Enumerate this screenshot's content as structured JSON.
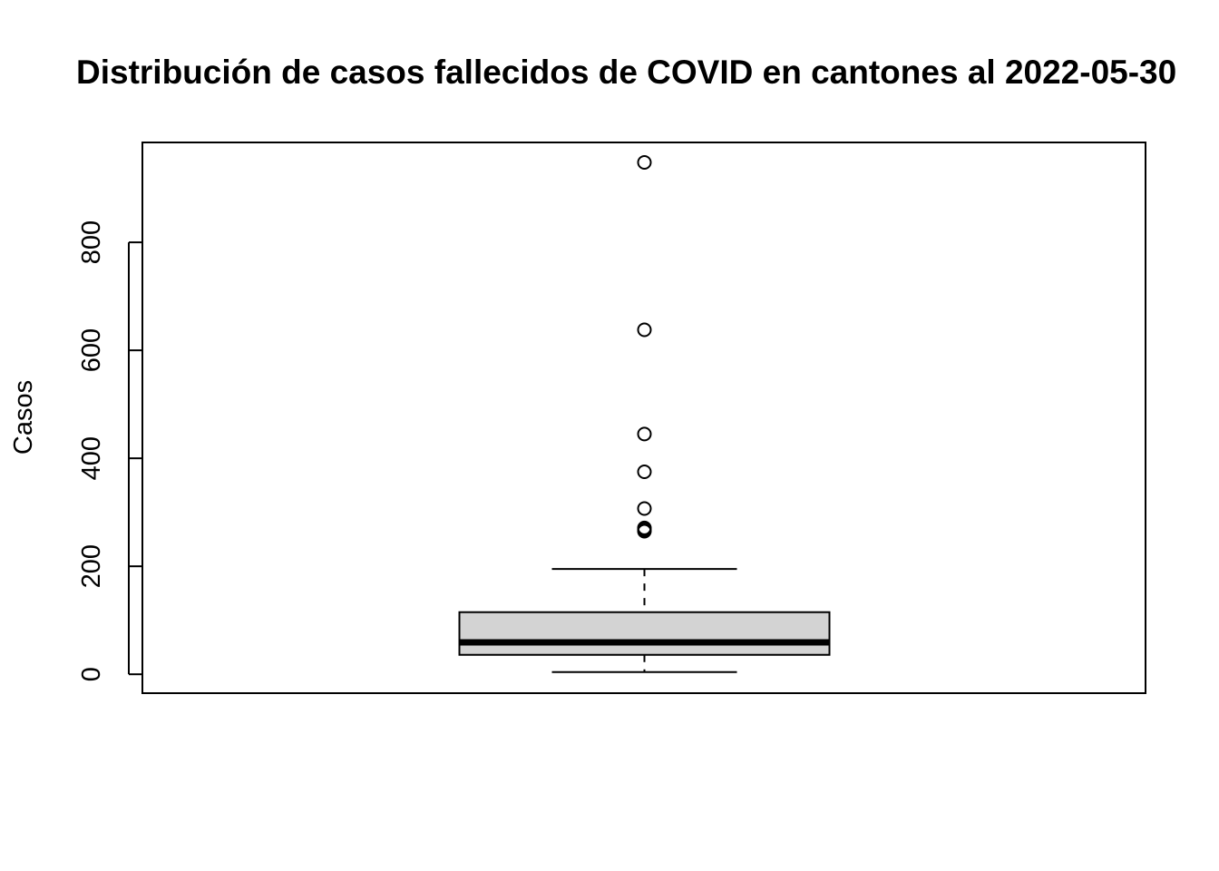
{
  "chart_data": {
    "type": "boxplot",
    "title": "Distribución de casos fallecidos de COVID en cantones al 2022-05-30",
    "ylabel": "Casos",
    "xlabel": "",
    "ylim": [
      -35,
      985
    ],
    "y_ticks": [
      0,
      200,
      400,
      600,
      800
    ],
    "y_tick_labels": [
      "0",
      "200",
      "400",
      "600",
      "800"
    ],
    "box": {
      "whisker_low": 4,
      "q1": 36,
      "median": 59,
      "q3": 115,
      "whisker_high": 195
    },
    "outliers": [
      948,
      638,
      445,
      375,
      307,
      271,
      268,
      265
    ],
    "box_fill_color": "#d3d3d3",
    "grid": false,
    "legend": "none"
  }
}
